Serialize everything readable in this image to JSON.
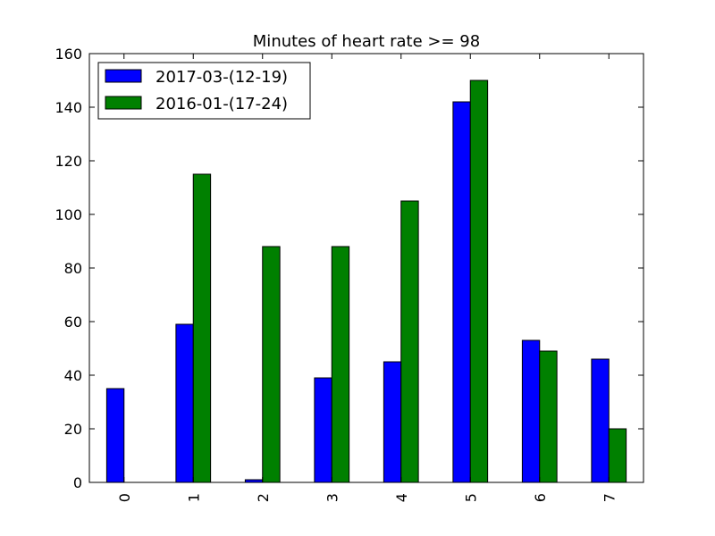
{
  "chart_data": {
    "type": "bar",
    "title": "Minutes of heart rate >= 98",
    "xlabel": "",
    "ylabel": "",
    "categories": [
      "0",
      "1",
      "2",
      "3",
      "4",
      "5",
      "6",
      "7"
    ],
    "series": [
      {
        "name": "2017-03-(12-19)",
        "color": "#0000ff",
        "values": [
          35,
          59,
          1,
          39,
          45,
          142,
          53,
          46
        ]
      },
      {
        "name": "2016-01-(17-24)",
        "color": "#008000",
        "values": [
          0,
          115,
          88,
          88,
          105,
          150,
          49,
          20
        ]
      }
    ],
    "ylim": [
      0,
      160
    ],
    "yticks": [
      0,
      20,
      40,
      60,
      80,
      100,
      120,
      140,
      160
    ],
    "grid": false,
    "legend_position": "top-left",
    "x_tick_rotation": "vertical"
  }
}
